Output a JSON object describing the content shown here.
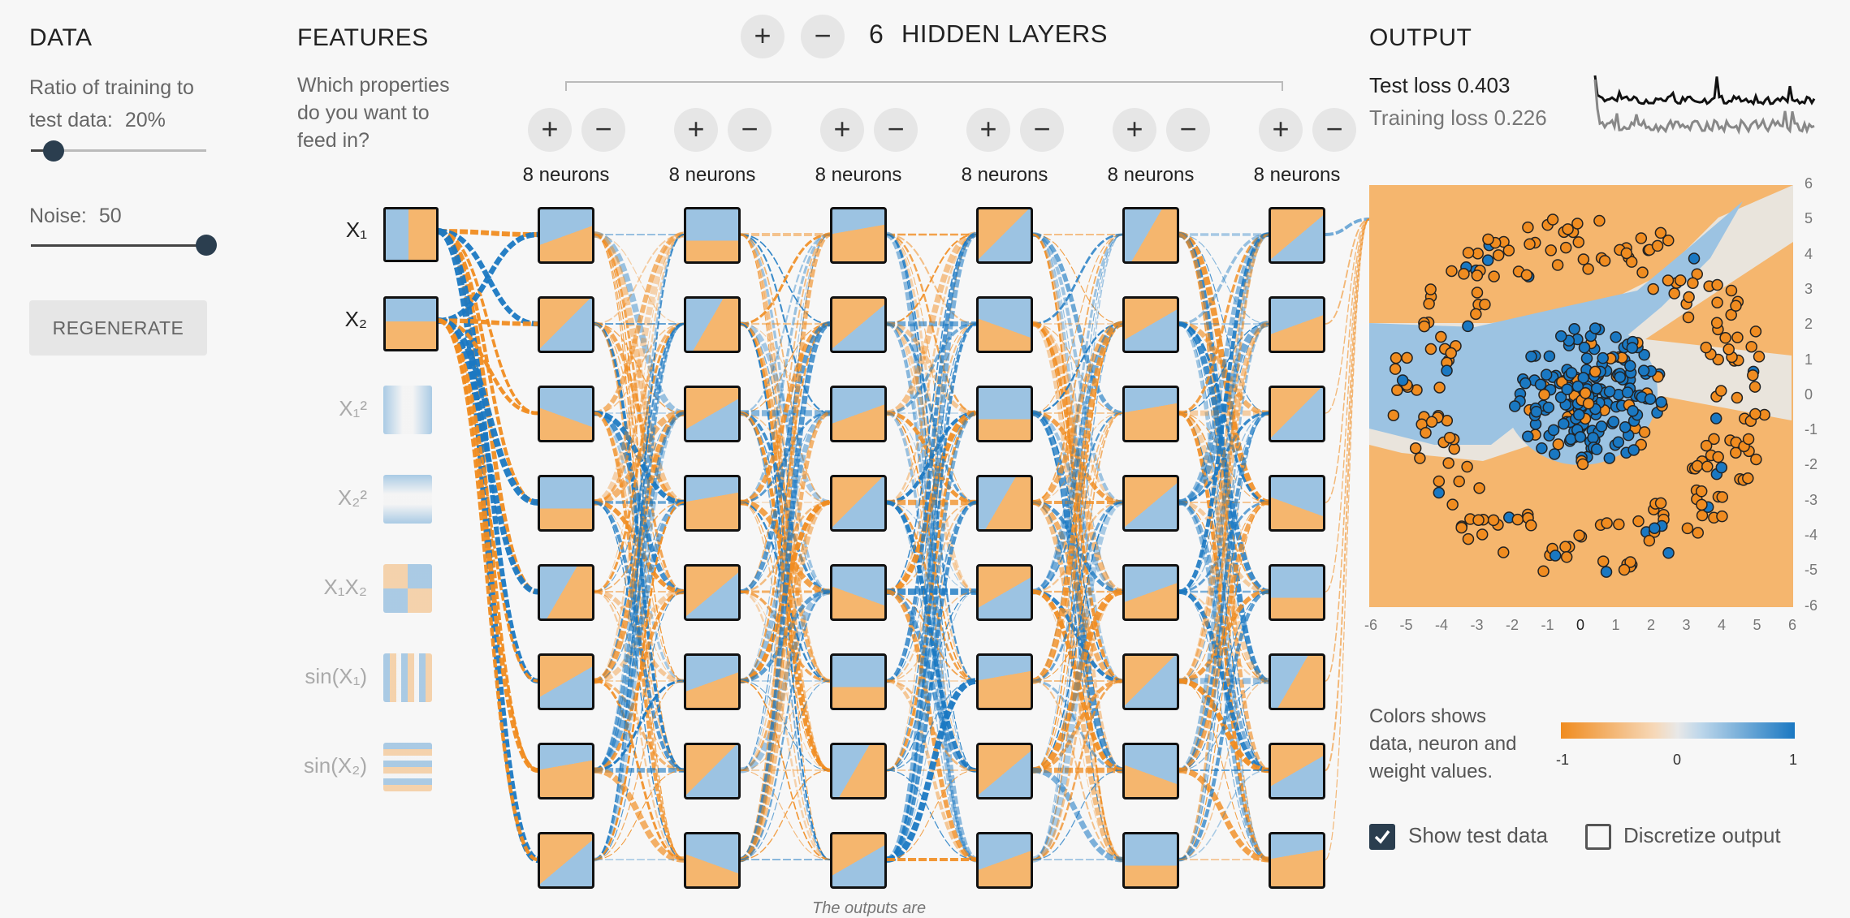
{
  "data_panel": {
    "title": "DATA",
    "ratio_label_line1": "Ratio of training to",
    "ratio_label_line2": "test data:",
    "ratio_value": "20%",
    "ratio_fraction": 0.2,
    "noise_label": "Noise:",
    "noise_value": "50",
    "noise_fraction": 1.0,
    "regenerate_label": "REGENERATE"
  },
  "features_panel": {
    "title": "FEATURES",
    "question_line1": "Which properties",
    "question_line2": "do you want to",
    "question_line3": "feed in?",
    "features": [
      {
        "label": "X₁",
        "enabled": true
      },
      {
        "label": "X₂",
        "enabled": true
      },
      {
        "label": "X₁²",
        "enabled": false
      },
      {
        "label": "X₂²",
        "enabled": false
      },
      {
        "label": "X₁X₂",
        "enabled": false
      },
      {
        "label": "sin(X₁)",
        "enabled": false
      },
      {
        "label": "sin(X₂)",
        "enabled": false
      }
    ]
  },
  "network": {
    "add_layer_symbol": "+",
    "remove_layer_symbol": "−",
    "layer_count": "6",
    "hidden_layers_label": "HIDDEN LAYERS",
    "layers": [
      {
        "neurons_label": "8 neurons"
      },
      {
        "neurons_label": "8 neurons"
      },
      {
        "neurons_label": "8 neurons"
      },
      {
        "neurons_label": "8 neurons"
      },
      {
        "neurons_label": "8 neurons"
      },
      {
        "neurons_label": "8 neurons"
      }
    ],
    "footnote": "The outputs are"
  },
  "output_panel": {
    "title": "OUTPUT",
    "test_loss_label": "Test loss 0.403",
    "training_loss_label": "Training loss 0.226",
    "x_ticks": [
      "-6",
      "-5",
      "-4",
      "-3",
      "-2",
      "-1",
      "0",
      "1",
      "2",
      "3",
      "4",
      "5",
      "6"
    ],
    "y_ticks": [
      "6",
      "5",
      "4",
      "3",
      "2",
      "1",
      "0",
      "-1",
      "-2",
      "-3",
      "-4",
      "-5",
      "-6"
    ],
    "legend_text_line1": "Colors shows",
    "legend_text_line2": "data, neuron and",
    "legend_text_line3": "weight values.",
    "legend_min": "-1",
    "legend_mid": "0",
    "legend_max": "1",
    "show_test_data_label": "Show test data",
    "show_test_data_checked": true,
    "discretize_label": "Discretize output",
    "discretize_checked": false
  },
  "colors": {
    "orange": "#f08c20",
    "blue": "#1a78c2",
    "light_orange": "#f5b66e",
    "light_blue": "#9cc3e2",
    "background": "#f7f7f7"
  }
}
